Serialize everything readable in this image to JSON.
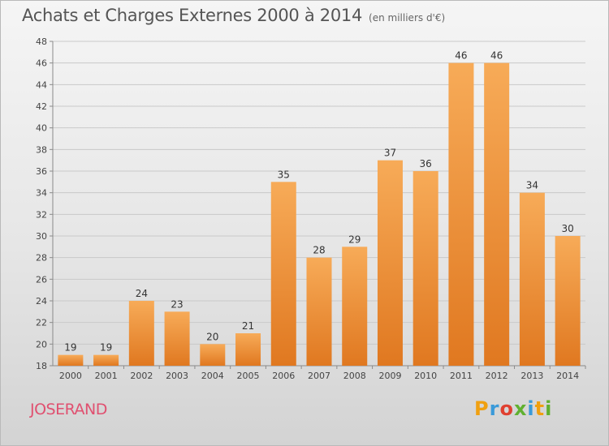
{
  "title": "Achats et Charges Externes 2000 à 2014",
  "subtitle": "(en milliers d'€)",
  "place": "JOSERAND",
  "logo": {
    "letters": [
      "P",
      "r",
      "o",
      "x",
      "i",
      "t",
      "i"
    ],
    "colors": [
      "#f0a010",
      "#3a9ad9",
      "#e04030",
      "#60b030",
      "#3a9ad9",
      "#f0a010",
      "#60b030"
    ]
  },
  "colors": {
    "bar_light": "#f7ab58",
    "bar_dark": "#e07820",
    "grid": "#c9c9c9",
    "axis": "#8a8a8a",
    "place": "#e05070"
  },
  "chart_data": {
    "type": "bar",
    "title": "Achats et Charges Externes 2000 à 2014",
    "subtitle": "(en milliers d'€)",
    "xlabel": "",
    "ylabel": "",
    "categories": [
      "2000",
      "2001",
      "2002",
      "2003",
      "2004",
      "2005",
      "2006",
      "2007",
      "2008",
      "2009",
      "2010",
      "2011",
      "2012",
      "2013",
      "2014"
    ],
    "values": [
      19,
      19,
      24,
      23,
      20,
      21,
      35,
      28,
      29,
      37,
      36,
      46,
      46,
      34,
      30
    ],
    "ylim": [
      18,
      48
    ],
    "yticks": [
      18,
      20,
      22,
      24,
      26,
      28,
      30,
      32,
      34,
      36,
      38,
      40,
      42,
      44,
      46,
      48
    ],
    "grid": true,
    "legend": "none"
  }
}
